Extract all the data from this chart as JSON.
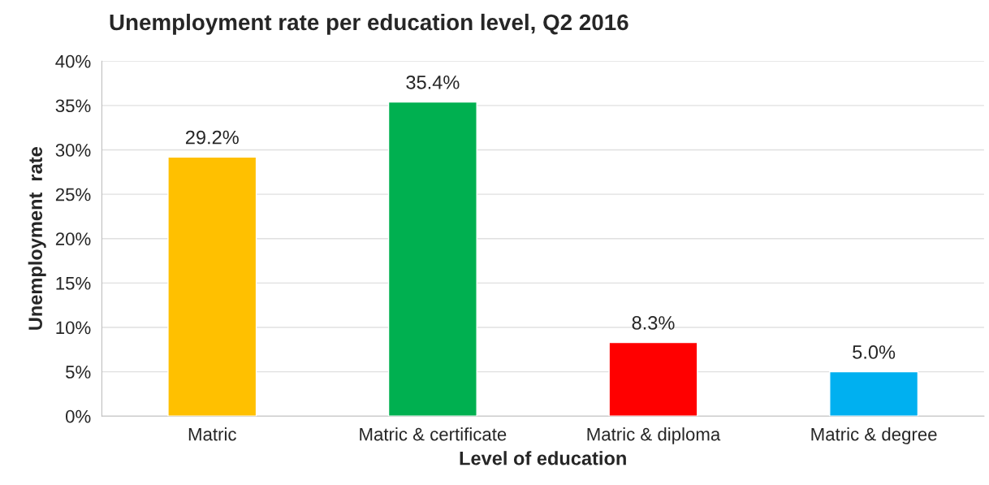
{
  "chart_data": {
    "type": "bar",
    "title": "Unemployment rate per education level, Q2 2016",
    "xlabel": "Level of education",
    "ylabel": "Unemployment  rate",
    "categories": [
      "Matric",
      "Matric & certificate",
      "Matric & diploma",
      "Matric & degree"
    ],
    "values": [
      29.2,
      35.4,
      8.3,
      5.0
    ],
    "colors": [
      "#ffc000",
      "#00b050",
      "#ff0000",
      "#00b0f0"
    ],
    "value_labels": [
      "29.2%",
      "35.4%",
      "8.3%",
      "5.0%"
    ],
    "ylim": [
      0,
      40
    ],
    "yticks": [
      {
        "value": 0,
        "label": "0%"
      },
      {
        "value": 5,
        "label": "5%"
      },
      {
        "value": 10,
        "label": "10%"
      },
      {
        "value": 15,
        "label": "15%"
      },
      {
        "value": 20,
        "label": "20%"
      },
      {
        "value": 25,
        "label": "25%"
      },
      {
        "value": 30,
        "label": "30%"
      },
      {
        "value": 35,
        "label": "35%"
      },
      {
        "value": 40,
        "label": "40%"
      }
    ],
    "grid": "y"
  }
}
